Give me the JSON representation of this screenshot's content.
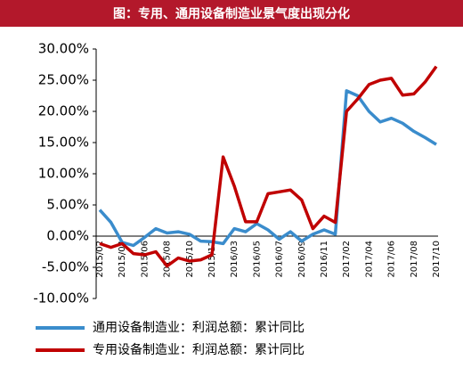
{
  "chart_data": {
    "type": "line",
    "title": "图：专用、通用设备制造业景气度出现分化",
    "categories": [
      "2015/02",
      null,
      "2015/04",
      null,
      "2015/06",
      null,
      "2015/08",
      null,
      "2015/10",
      null,
      "2015/12",
      null,
      "2016/03",
      null,
      "2016/05",
      null,
      "2016/07",
      null,
      "2016/09",
      null,
      "2016/11",
      null,
      "2017/02",
      null,
      "2017/04",
      null,
      "2017/06",
      null,
      "2017/08",
      null,
      "2017/10"
    ],
    "series": [
      {
        "name": "通用设备制造业：利润总额：累计同比",
        "color": "#3a8ccc",
        "values": [
          4.2,
          2.2,
          -1.0,
          -1.5,
          -0.2,
          1.2,
          0.5,
          0.7,
          0.3,
          -0.8,
          -0.9,
          -1.2,
          1.2,
          0.7,
          2.0,
          1.0,
          -0.5,
          0.7,
          -0.8,
          0.3,
          1.0,
          0.3,
          23.3,
          22.5,
          20.0,
          18.3,
          18.9,
          18.1,
          16.8,
          15.8,
          14.7
        ]
      },
      {
        "name": "专用设备制造业：利润总额：累计同比",
        "color": "#c00000",
        "values": [
          -1.2,
          -1.8,
          -1.2,
          -2.8,
          -3.0,
          -2.5,
          -4.8,
          -3.5,
          -4.0,
          -3.8,
          -3.0,
          12.7,
          8.0,
          2.3,
          2.3,
          6.8,
          7.1,
          7.4,
          5.8,
          1.2,
          3.2,
          2.2,
          20.0,
          22.0,
          24.3,
          25.0,
          25.3,
          22.6,
          22.8,
          24.7,
          27.2
        ]
      }
    ],
    "ylim": [
      -10,
      30
    ],
    "yticks": [
      {
        "value": -10,
        "label": "-10.00%"
      },
      {
        "value": -5,
        "label": "-5.00%"
      },
      {
        "value": 0,
        "label": "0.00%"
      },
      {
        "value": 5,
        "label": "5.00%"
      },
      {
        "value": 10,
        "label": "10.00%"
      },
      {
        "value": 15,
        "label": "15.00%"
      },
      {
        "value": 20,
        "label": "20.00%"
      },
      {
        "value": 25,
        "label": "25.00%"
      },
      {
        "value": 30,
        "label": "30.00%"
      }
    ],
    "grid": false
  }
}
